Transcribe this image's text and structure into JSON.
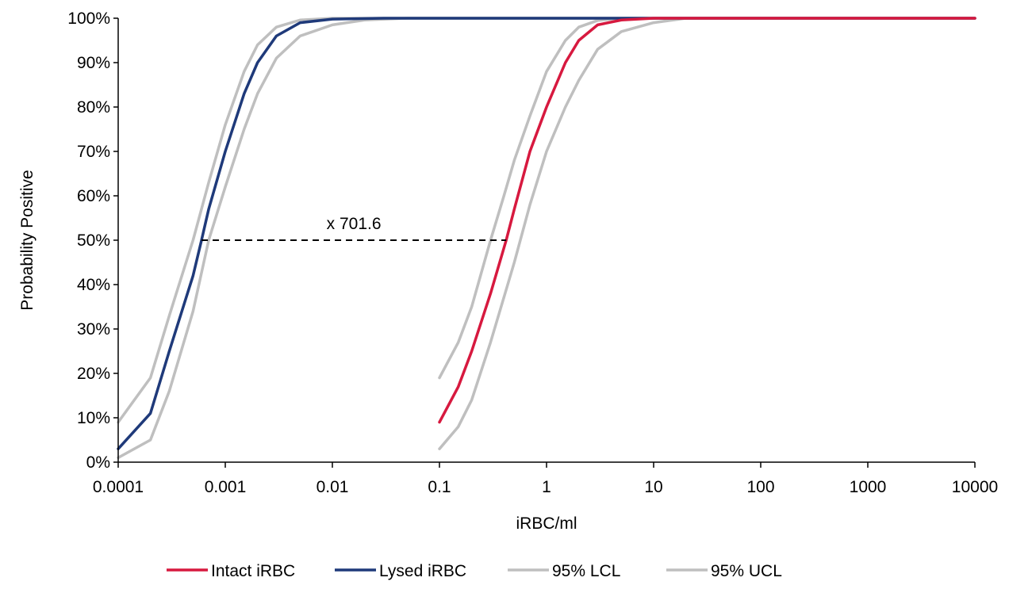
{
  "chart_data": {
    "type": "line",
    "title": "",
    "xlabel": "iRBC/ml",
    "ylabel": "Probability Positive",
    "xscale": "log",
    "xlim": [
      0.0001,
      10000
    ],
    "ylim": [
      0,
      100
    ],
    "xticks": [
      "0.0001",
      "0.001",
      "0.01",
      "0.1",
      "1",
      "10",
      "100",
      "1000",
      "10000"
    ],
    "yticks": [
      "0%",
      "10%",
      "20%",
      "30%",
      "40%",
      "50%",
      "60%",
      "70%",
      "80%",
      "90%",
      "100%"
    ],
    "grid": false,
    "legend_position": "bottom",
    "legend": [
      {
        "label": "Intact iRBC",
        "color": "#d7193f"
      },
      {
        "label": "Lysed iRBC",
        "color": "#1f3a7a"
      },
      {
        "label": "95% LCL",
        "color": "#bfbfbf"
      },
      {
        "label": "95% UCL",
        "color": "#bfbfbf"
      }
    ],
    "series": [
      {
        "name": "Lysed iRBC",
        "color": "#1f3a7a",
        "points": [
          [
            0.0001,
            3
          ],
          [
            0.0002,
            11
          ],
          [
            0.0003,
            25
          ],
          [
            0.0005,
            42
          ],
          [
            0.0006,
            50
          ],
          [
            0.0007,
            57
          ],
          [
            0.001,
            70
          ],
          [
            0.0015,
            83
          ],
          [
            0.002,
            90
          ],
          [
            0.003,
            96
          ],
          [
            0.005,
            99
          ],
          [
            0.01,
            99.8
          ],
          [
            0.03,
            100
          ],
          [
            10000,
            100
          ]
        ]
      },
      {
        "name": "95% LCL",
        "color": "#bfbfbf",
        "points": [
          [
            0.0001,
            9
          ],
          [
            0.0002,
            19
          ],
          [
            0.0003,
            33
          ],
          [
            0.0005,
            50
          ],
          [
            0.0007,
            63
          ],
          [
            0.001,
            76
          ],
          [
            0.0015,
            88
          ],
          [
            0.002,
            94
          ],
          [
            0.003,
            98
          ],
          [
            0.005,
            99.6
          ],
          [
            0.01,
            100
          ],
          [
            10000,
            100
          ]
        ]
      },
      {
        "name": "95% UCL",
        "color": "#bfbfbf",
        "points": [
          [
            0.0001,
            1
          ],
          [
            0.0002,
            5
          ],
          [
            0.0003,
            16
          ],
          [
            0.0005,
            34
          ],
          [
            0.0007,
            50
          ],
          [
            0.001,
            62
          ],
          [
            0.0015,
            75
          ],
          [
            0.002,
            83
          ],
          [
            0.003,
            91
          ],
          [
            0.005,
            96
          ],
          [
            0.01,
            98.5
          ],
          [
            0.02,
            99.6
          ],
          [
            0.05,
            100
          ],
          [
            10000,
            100
          ]
        ]
      },
      {
        "name": "Intact iRBC",
        "color": "#d7193f",
        "points": [
          [
            0.1,
            9
          ],
          [
            0.15,
            17
          ],
          [
            0.2,
            25
          ],
          [
            0.3,
            38
          ],
          [
            0.42,
            50
          ],
          [
            0.5,
            57
          ],
          [
            0.7,
            70
          ],
          [
            1,
            80
          ],
          [
            1.5,
            90
          ],
          [
            2,
            95
          ],
          [
            3,
            98.5
          ],
          [
            5,
            99.6
          ],
          [
            10,
            100
          ],
          [
            10000,
            100
          ]
        ]
      },
      {
        "name": "95% LCL",
        "color": "#bfbfbf",
        "points": [
          [
            0.1,
            19
          ],
          [
            0.15,
            27
          ],
          [
            0.2,
            35
          ],
          [
            0.3,
            50
          ],
          [
            0.4,
            60
          ],
          [
            0.5,
            68
          ],
          [
            0.7,
            78
          ],
          [
            1,
            88
          ],
          [
            1.5,
            95
          ],
          [
            2,
            98
          ],
          [
            3,
            99.5
          ],
          [
            5,
            100
          ],
          [
            10000,
            100
          ]
        ]
      },
      {
        "name": "95% UCL",
        "color": "#bfbfbf",
        "points": [
          [
            0.1,
            3
          ],
          [
            0.15,
            8
          ],
          [
            0.2,
            14
          ],
          [
            0.3,
            27
          ],
          [
            0.5,
            45
          ],
          [
            0.7,
            58
          ],
          [
            1,
            70
          ],
          [
            1.5,
            80
          ],
          [
            2,
            86
          ],
          [
            3,
            93
          ],
          [
            5,
            97
          ],
          [
            10,
            99
          ],
          [
            20,
            100
          ],
          [
            10000,
            100
          ]
        ]
      }
    ],
    "annotation": {
      "text": "x 701.6",
      "y": 50,
      "x_start": 0.0006,
      "x_end": 0.42,
      "style": "dashed"
    }
  }
}
